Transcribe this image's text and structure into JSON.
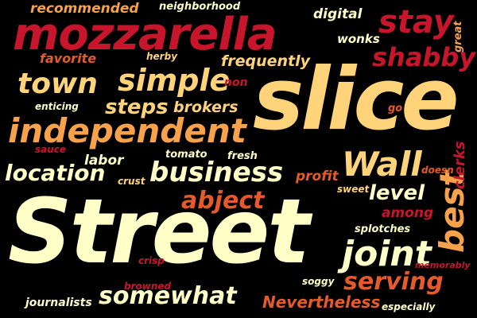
{
  "theme": {
    "background": "#000000",
    "palette": [
      "#FFFFC8",
      "#FFD37A",
      "#F7A24B",
      "#E45A2A",
      "#C7162B",
      "#A01224"
    ]
  },
  "words": {
    "street": "Street",
    "slice": "slice",
    "mozzarella": "mozzarella",
    "independent": "independent",
    "business": "business",
    "simple": "simple",
    "town": "town",
    "wall": "Wall",
    "location": "location",
    "joint": "joint",
    "serving": "serving",
    "somewhat": "somewhat",
    "nevertheless": "Nevertheless",
    "stay": "stay",
    "shabby": "shabby",
    "best": "best",
    "steps": "steps",
    "abject": "abject",
    "level": "level",
    "recommended": "recommended",
    "neighborhood": "neighborhood",
    "digital": "digital",
    "wonks": "wonks",
    "great": "great",
    "favorite": "favorite",
    "herby": "herby",
    "frequently": "frequently",
    "non": "non",
    "enticing": "enticing",
    "brokers": "brokers",
    "go": "go",
    "sauce": "sauce",
    "labor": "labor",
    "tomato": "tomato",
    "fresh": "fresh",
    "crust": "crust",
    "profit": "profit",
    "doesn": "doesn",
    "clerks": "clerks",
    "sweet": "sweet",
    "among": "among",
    "splotches": "splotches",
    "crisp": "crisp",
    "memorably": "memorably",
    "browned": "browned",
    "soggy": "soggy",
    "journalists": "journalists",
    "especially": "especially"
  }
}
